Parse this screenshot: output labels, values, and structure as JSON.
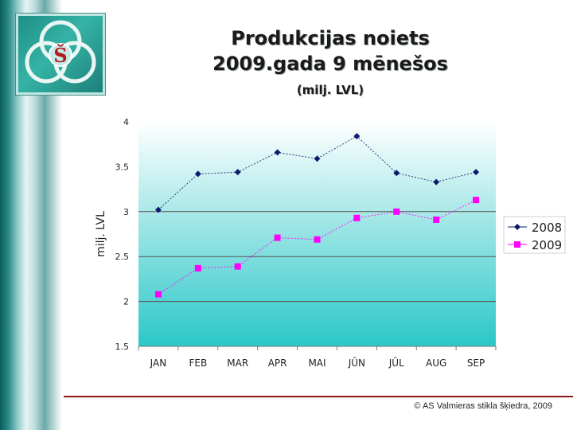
{
  "header": {
    "title_line1": "Produkcijas noiets",
    "title_line2": "2009.gada 9 mēnešos",
    "subtitle": "(milj. LVL)"
  },
  "logo": {
    "letter": "Š"
  },
  "footer": {
    "text": "© AS Valmieras stikla šķiedra, 2009"
  },
  "colors": {
    "series_2008": "#0d1a6b",
    "series_2009": "#ff00ff",
    "plot_top": "#ffffff",
    "plot_bottom": "#2bc7c7",
    "footer_rule": "#8b1a1a"
  },
  "chart_data": {
    "type": "line",
    "categories": [
      "JAN",
      "FEB",
      "MAR",
      "APR",
      "MAI",
      "JŪN",
      "JŪL",
      "AUG",
      "SEP"
    ],
    "ylabel": "milj. LVL",
    "ylim": [
      1.5,
      4
    ],
    "yticks": [
      "1.5",
      "2",
      "2.5",
      "3",
      "3.5",
      "4"
    ],
    "grid": "horizontal at 2, 2.5, 3",
    "legend_position": "right",
    "series": [
      {
        "name": "2008",
        "values": [
          3.02,
          3.42,
          3.44,
          3.66,
          3.59,
          3.84,
          3.43,
          3.33,
          3.44
        ]
      },
      {
        "name": "2009",
        "values": [
          2.08,
          2.37,
          2.39,
          2.71,
          2.69,
          2.93,
          3.0,
          2.91,
          3.13
        ]
      }
    ]
  }
}
